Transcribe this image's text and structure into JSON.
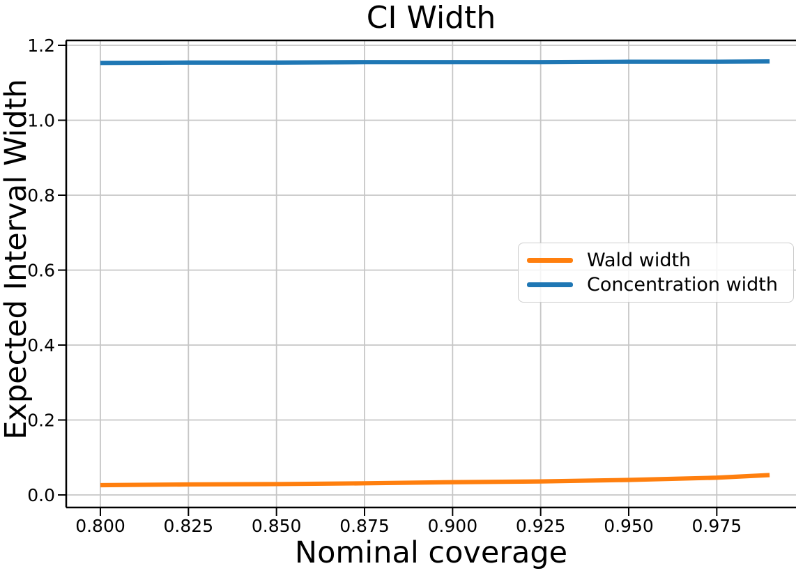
{
  "figure": {
    "title": "CI Width",
    "xlabel": "Nominal coverage",
    "ylabel": "Expected Interval Width"
  },
  "chart_data": {
    "type": "line",
    "title": "CI Width",
    "xlabel": "Nominal coverage",
    "ylabel": "Expected Interval Width",
    "x": [
      0.8,
      0.825,
      0.85,
      0.875,
      0.9,
      0.925,
      0.95,
      0.975,
      0.99
    ],
    "series": [
      {
        "name": "Wald width",
        "color": "#ff7f0e",
        "values": [
          0.026,
          0.028,
          0.029,
          0.031,
          0.034,
          0.036,
          0.04,
          0.046,
          0.053
        ]
      },
      {
        "name": "Concentration width",
        "color": "#1f77b4",
        "values": [
          1.153,
          1.154,
          1.154,
          1.155,
          1.155,
          1.155,
          1.156,
          1.156,
          1.157
        ]
      }
    ],
    "xticks": [
      0.8,
      0.825,
      0.85,
      0.875,
      0.9,
      0.925,
      0.95,
      0.975
    ],
    "xtick_labels": [
      "0.800",
      "0.825",
      "0.850",
      "0.875",
      "0.900",
      "0.925",
      "0.950",
      "0.975"
    ],
    "yticks": [
      0.0,
      0.2,
      0.4,
      0.6,
      0.8,
      1.0,
      1.2
    ],
    "ytick_labels": [
      "0.0",
      "0.2",
      "0.4",
      "0.6",
      "0.8",
      "1.0",
      "1.2"
    ],
    "xlim": [
      0.7905,
      0.9995
    ],
    "ylim": [
      -0.031,
      1.211
    ],
    "grid": true,
    "legend": {
      "position": "center-right",
      "entries": [
        "Wald width",
        "Concentration width"
      ]
    }
  },
  "colors": {
    "wald": "#ff7f0e",
    "concentration": "#1f77b4",
    "grid": "#c6c6c6",
    "spine": "#000000",
    "background": "#ffffff"
  }
}
